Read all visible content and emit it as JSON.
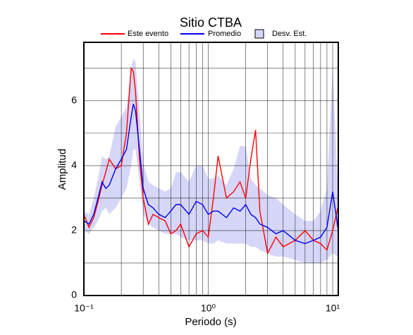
{
  "chart_data": {
    "type": "line",
    "title": "Sitio CTBA",
    "x_label": "Periodo (s)",
    "y_label": "Amplitud",
    "x_scale": "log",
    "grid": true,
    "xlim": [
      0.1,
      11.1
    ],
    "xticks": [
      {
        "value": 0.1,
        "label": "10⁻¹"
      },
      {
        "value": 1,
        "label": "10⁰"
      },
      {
        "value": 10,
        "label": "10¹"
      }
    ],
    "minor_xticks": [
      0.2,
      0.3,
      0.4,
      0.5,
      0.6,
      0.7,
      0.8,
      0.9,
      2,
      3,
      4,
      5,
      6,
      7,
      8,
      9
    ],
    "ylim": [
      0,
      7.8
    ],
    "yticks": [
      0,
      2,
      4,
      6
    ],
    "minor_yticks": [
      1,
      3,
      5,
      7
    ],
    "x": [
      0.1,
      0.11,
      0.12,
      0.13,
      0.14,
      0.15,
      0.16,
      0.18,
      0.2,
      0.22,
      0.24,
      0.25,
      0.26,
      0.28,
      0.3,
      0.33,
      0.36,
      0.4,
      0.45,
      0.5,
      0.55,
      0.6,
      0.7,
      0.8,
      0.9,
      1.0,
      1.1,
      1.2,
      1.4,
      1.6,
      1.8,
      2.0,
      2.2,
      2.4,
      2.6,
      3.0,
      3.5,
      4,
      5,
      6,
      7,
      8,
      9,
      10,
      11
    ],
    "series": [
      {
        "name": "Este evento",
        "color": "#ff0000",
        "values": [
          2.5,
          2.1,
          2.4,
          2.9,
          3.4,
          3.8,
          4.2,
          3.9,
          4.0,
          5.0,
          7.0,
          6.9,
          6.3,
          4.2,
          3.0,
          2.2,
          2.5,
          2.4,
          2.3,
          1.9,
          2.0,
          2.2,
          1.5,
          1.9,
          2.0,
          1.8,
          3.0,
          4.3,
          3.0,
          3.2,
          3.5,
          3.0,
          4.2,
          5.1,
          2.6,
          1.3,
          1.8,
          1.5,
          1.7,
          2.0,
          1.7,
          1.6,
          1.4,
          2.0,
          2.7
        ]
      },
      {
        "name": "Promedio",
        "color": "#0000ee",
        "values": [
          2.3,
          2.2,
          2.5,
          3.0,
          3.5,
          3.3,
          3.4,
          3.9,
          4.2,
          4.5,
          5.5,
          5.9,
          5.7,
          4.5,
          3.3,
          2.8,
          2.7,
          2.5,
          2.4,
          2.6,
          2.8,
          2.8,
          2.5,
          2.9,
          2.8,
          2.5,
          2.6,
          2.6,
          2.4,
          2.7,
          2.6,
          2.8,
          2.5,
          2.4,
          2.2,
          2.1,
          1.9,
          2.0,
          1.7,
          1.6,
          1.7,
          1.8,
          2.1,
          3.2,
          2.1
        ]
      }
    ],
    "band": {
      "name": "Desv. Est.",
      "color": "#d6d6f8",
      "lower": [
        2.0,
        1.9,
        2.1,
        2.3,
        2.6,
        2.7,
        2.5,
        2.7,
        3.0,
        3.3,
        4.0,
        4.5,
        4.5,
        3.5,
        2.5,
        2.2,
        2.1,
        2.0,
        1.9,
        1.9,
        1.9,
        1.8,
        1.7,
        1.7,
        1.7,
        1.6,
        1.6,
        1.7,
        1.6,
        1.6,
        1.6,
        1.6,
        1.5,
        1.5,
        1.4,
        1.3,
        1.2,
        1.2,
        1.1,
        1.0,
        1.0,
        1.0,
        1.1,
        1.3,
        1.2
      ],
      "upper": [
        2.6,
        2.5,
        3.0,
        3.6,
        4.3,
        4.2,
        4.3,
        5.2,
        5.5,
        5.8,
        7.0,
        7.3,
        7.2,
        5.6,
        4.1,
        3.5,
        3.4,
        3.3,
        3.2,
        3.3,
        3.8,
        3.8,
        3.5,
        4.0,
        4.0,
        3.6,
        3.6,
        3.7,
        3.4,
        3.9,
        4.6,
        4.6,
        3.6,
        3.4,
        3.3,
        3.1,
        3.0,
        2.8,
        2.5,
        2.3,
        2.3,
        2.6,
        3.3,
        7.0,
        3.4
      ]
    }
  }
}
